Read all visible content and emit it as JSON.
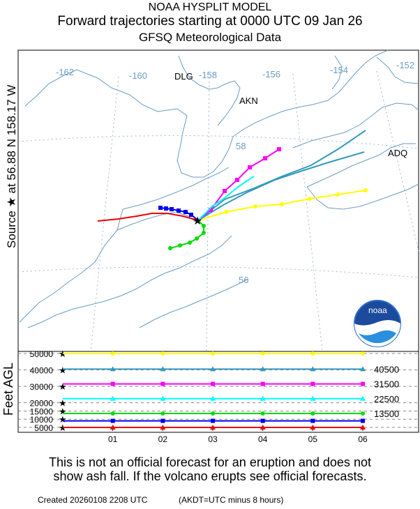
{
  "header": {
    "line1": "NOAA HYSPLIT MODEL",
    "line2": "Forward trajectories starting at 0000 UTC 09 Jan 26",
    "line3": "GFSQ Meteorological Data"
  },
  "side_label": "Source ★ at  56.88 N  158.17 W",
  "map": {
    "longitude_labels": [
      "-162",
      "-160",
      "-158",
      "-156",
      "-154",
      "-152"
    ],
    "latitude_labels": [
      "58",
      "56"
    ],
    "place_labels": [
      "DLG",
      "AKN",
      "ADQ"
    ],
    "logo_text": "noaa",
    "colors": {
      "water_line": "#6b9cc4",
      "grid": "#9cb8d4"
    }
  },
  "vertical_panel": {
    "y_axis_label": "Feet AGL",
    "y_ticks": [
      "50000",
      "40000",
      "30000",
      "20000",
      "15000",
      "10000",
      "5000"
    ],
    "x_ticks": [
      "01",
      "02",
      "03",
      "04",
      "05",
      "06"
    ],
    "right_labels": [
      "40500",
      "31500",
      "22500",
      "13500"
    ]
  },
  "chart_data": {
    "type": "line",
    "title": "Forward trajectories starting at 0000 UTC 09 Jan 26",
    "xlabel": "",
    "ylabel": "Feet AGL",
    "x": [
      0,
      1,
      2,
      3,
      4,
      5,
      6
    ],
    "ylim": [
      5000,
      50000
    ],
    "series": [
      {
        "color": "#ffff00",
        "marker": "circle",
        "values": [
          50000,
          50000,
          50000,
          50000,
          50000,
          50000,
          50000
        ]
      },
      {
        "color": "#3399bb",
        "marker": "triangle",
        "values": [
          40500,
          40500,
          40500,
          40500,
          40500,
          40500,
          40500
        ]
      },
      {
        "color": "#ff00ff",
        "marker": "square",
        "values": [
          31500,
          31500,
          31500,
          31500,
          31500,
          31500,
          31500
        ]
      },
      {
        "color": "#00ffff",
        "marker": "triangle",
        "values": [
          22500,
          22500,
          22500,
          22500,
          22500,
          22500,
          22500
        ]
      },
      {
        "color": "#00dd00",
        "marker": "circle",
        "values": [
          13500,
          13500,
          13500,
          13500,
          13500,
          13500,
          13500
        ]
      },
      {
        "color": "#0000ee",
        "marker": "square",
        "values": [
          9000,
          9000,
          9000,
          9000,
          9000,
          9000,
          9000
        ]
      },
      {
        "color": "#ee0000",
        "marker": "triangle",
        "values": [
          5000,
          5000,
          5000,
          5000,
          5000,
          5000,
          5000
        ]
      }
    ]
  },
  "disclaimer": {
    "line1": "This is not an official forecast for an eruption and does not",
    "line2": "show ash fall. If the volcano erupts see official forecasts."
  },
  "footer": {
    "created": "Created 20260108 2208 UTC",
    "timezone": "(AKDT=UTC minus 8 hours)"
  }
}
